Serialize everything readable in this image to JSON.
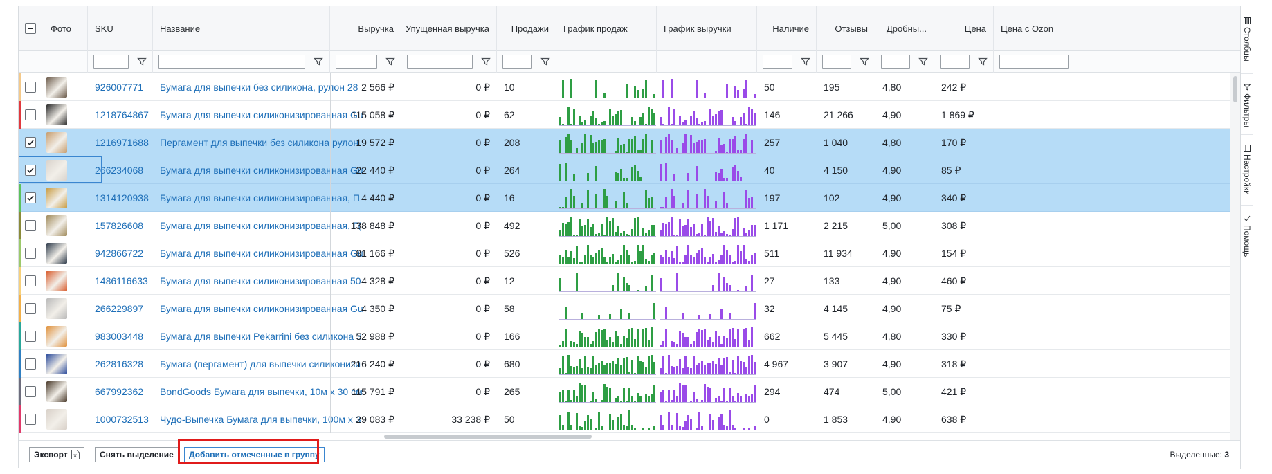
{
  "columns": {
    "photo": "Фото",
    "sku": "SKU",
    "name": "Название",
    "revenue": "Выручка",
    "lost_revenue": "Упущенная выручка",
    "sales": "Продажи",
    "sales_chart": "График продаж",
    "revenue_chart": "График выручки",
    "stock": "Наличие",
    "reviews": "Отзывы",
    "rating": "Дробны...",
    "price": "Цена",
    "price_ozon": "Цена с Ozon"
  },
  "rows": [
    {
      "sku": "926007771",
      "name": "Бумага для выпечки без силикона, рулон 28",
      "revenue": "2 566 ₽",
      "lost": "0 ₽",
      "sales": "10",
      "stock": "50",
      "reviews": "195",
      "rating": "4,80",
      "price": "242 ₽",
      "selected": false,
      "accent": "#f4c98a",
      "thumb": "#6b5a4a"
    },
    {
      "sku": "1218764867",
      "name": "Бумага для выпечки силиконизированная Gu",
      "revenue": "115 058 ₽",
      "lost": "0 ₽",
      "sales": "62",
      "stock": "146",
      "reviews": "21 266",
      "rating": "4,90",
      "price": "1 869 ₽",
      "selected": false,
      "accent": "#e0393e",
      "thumb": "#2b2b2b"
    },
    {
      "sku": "1216971688",
      "name": "Пергамент для выпечки без силикона рулон",
      "revenue": "19 572 ₽",
      "lost": "0 ₽",
      "sales": "208",
      "stock": "257",
      "reviews": "1 040",
      "rating": "4,80",
      "price": "170 ₽",
      "selected": true,
      "accent": "#b6dcf7",
      "thumb": "#c69c6d"
    },
    {
      "sku": "266234068",
      "name": "Бумага для выпечки силиконизированная Gu",
      "revenue": "22 440 ₽",
      "lost": "0 ₽",
      "sales": "264",
      "stock": "40",
      "reviews": "4 150",
      "rating": "4,90",
      "price": "85 ₽",
      "selected": true,
      "accent": "#b6dcf7",
      "thumb": "#d9d3cc"
    },
    {
      "sku": "1314120938",
      "name": "Бумага для выпечки силиконизированная, П",
      "revenue": "4 440 ₽",
      "lost": "0 ₽",
      "sales": "16",
      "stock": "197",
      "reviews": "102",
      "rating": "4,90",
      "price": "340 ₽",
      "selected": true,
      "accent": "#5cc15c",
      "thumb": "#c79a3f"
    },
    {
      "sku": "157826608",
      "name": "Бумага для выпечки силиконизированная, Г(",
      "revenue": "138 848 ₽",
      "lost": "0 ₽",
      "sales": "492",
      "stock": "1 171",
      "reviews": "2 215",
      "rating": "5,00",
      "price": "308 ₽",
      "selected": false,
      "accent": "#8a8a3a",
      "thumb": "#a08a5a"
    },
    {
      "sku": "942866722",
      "name": "Бумага для выпечки силиконизированная Gu",
      "revenue": "81 166 ₽",
      "lost": "0 ₽",
      "sales": "526",
      "stock": "511",
      "reviews": "11 934",
      "rating": "4,90",
      "price": "154 ₽",
      "selected": false,
      "accent": "#9cc96b",
      "thumb": "#2d3a4a"
    },
    {
      "sku": "1486116633",
      "name": "Бумага для выпечки силиконизированная 50",
      "revenue": "4 328 ₽",
      "lost": "0 ₽",
      "sales": "12",
      "stock": "27",
      "reviews": "133",
      "rating": "4,90",
      "price": "460 ₽",
      "selected": false,
      "accent": "#f7d07a",
      "thumb": "#d85a2a"
    },
    {
      "sku": "266229897",
      "name": "Бумага для выпечки силиконизированная Gu",
      "revenue": "4 350 ₽",
      "lost": "0 ₽",
      "sales": "58",
      "stock": "32",
      "reviews": "4 145",
      "rating": "4,90",
      "price": "75 ₽",
      "selected": false,
      "accent": "#f2b04a",
      "thumb": "#b9b9b9"
    },
    {
      "sku": "983003448",
      "name": "Бумага для выпечки Pekarrini без силикона 3",
      "revenue": "52 988 ₽",
      "lost": "0 ₽",
      "sales": "166",
      "stock": "662",
      "reviews": "5 445",
      "rating": "4,80",
      "price": "330 ₽",
      "selected": false,
      "accent": "#2aa79a",
      "thumb": "#e0903a"
    },
    {
      "sku": "262816328",
      "name": "Бумага (пергамент) для выпечки силиконизи",
      "revenue": "216 240 ₽",
      "lost": "0 ₽",
      "sales": "680",
      "stock": "4 967",
      "reviews": "3 907",
      "rating": "4,90",
      "price": "318 ₽",
      "selected": false,
      "accent": "#2f7fc1",
      "thumb": "#27489a"
    },
    {
      "sku": "667992362",
      "name": "BondGoods Бумага для выпечки, 10м х 30 см",
      "revenue": "115 791 ₽",
      "lost": "0 ₽",
      "sales": "265",
      "stock": "294",
      "reviews": "474",
      "rating": "5,00",
      "price": "421 ₽",
      "selected": false,
      "accent": "#6d6d7d",
      "thumb": "#4a3a2a"
    },
    {
      "sku": "1000732513",
      "name": "Чудо-Выпечка Бумага для выпечки, 100м х 3",
      "revenue": "29 083 ₽",
      "lost": "33 238 ₽",
      "sales": "50",
      "stock": "0",
      "reviews": "1 853",
      "rating": "4,90",
      "price": "638 ₽",
      "selected": false,
      "accent": "#e0396a",
      "thumb": "#d8d0c8"
    }
  ],
  "colors": {
    "sales_chart": "#2e9e44",
    "revenue_chart": "#9a4be8",
    "selection": "#b6dcf7",
    "link": "#1e6fb8"
  },
  "sidebar": {
    "columns": "Столбцы",
    "filters": "Фильтры",
    "settings": "Настройки",
    "help": "Помощь"
  },
  "footer": {
    "export": "Экспорт",
    "clear_selection": "Снять выделение",
    "add_to_group": "Добавить отмеченные в группу",
    "selected_label": "Выделенные:",
    "selected_count": "3"
  }
}
